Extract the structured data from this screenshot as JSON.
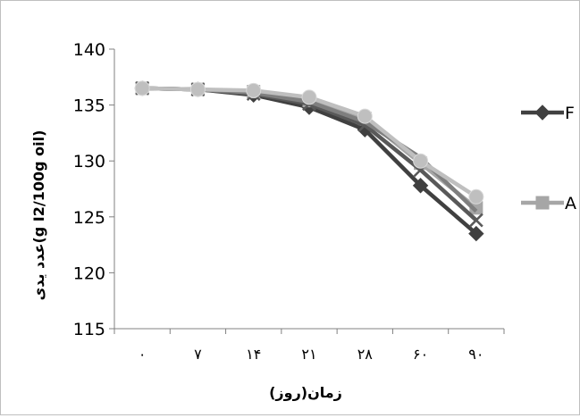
{
  "chart_data": {
    "type": "line",
    "xlabel": "زمان(روز)",
    "ylabel": "عدد یدی(g I2/100g oil)",
    "ylim": [
      115,
      140
    ],
    "yticks": [
      "115",
      "120",
      "125",
      "130",
      "135",
      "140"
    ],
    "categories": [
      "۰",
      "۷",
      "۱۴",
      "۲۱",
      "۲۸",
      "۶۰",
      "۹۰"
    ],
    "grid": false,
    "legend_position": "right",
    "series": [
      {
        "name": "F",
        "color": "#404040",
        "marker": "diamond",
        "values": [
          136.5,
          136.4,
          135.9,
          134.8,
          132.8,
          127.8,
          123.5
        ]
      },
      {
        "name": "A",
        "color": "#a6a6a6",
        "marker": "square",
        "values": [
          136.5,
          136.4,
          136.2,
          135.4,
          133.8,
          129.8,
          125.8
        ]
      },
      {
        "name": "",
        "color": "#595959",
        "marker": "x",
        "values": [
          136.5,
          136.4,
          136.0,
          135.1,
          133.2,
          129.2,
          124.7
        ]
      },
      {
        "name": "",
        "color": "#7f7f7f",
        "marker": "none",
        "values": [
          136.5,
          136.4,
          136.1,
          135.3,
          133.5,
          130.3,
          125.5
        ]
      },
      {
        "name": "",
        "color": "#bfbfbf",
        "marker": "circle",
        "values": [
          136.5,
          136.4,
          136.3,
          135.7,
          134.0,
          130.0,
          126.8
        ]
      }
    ]
  }
}
